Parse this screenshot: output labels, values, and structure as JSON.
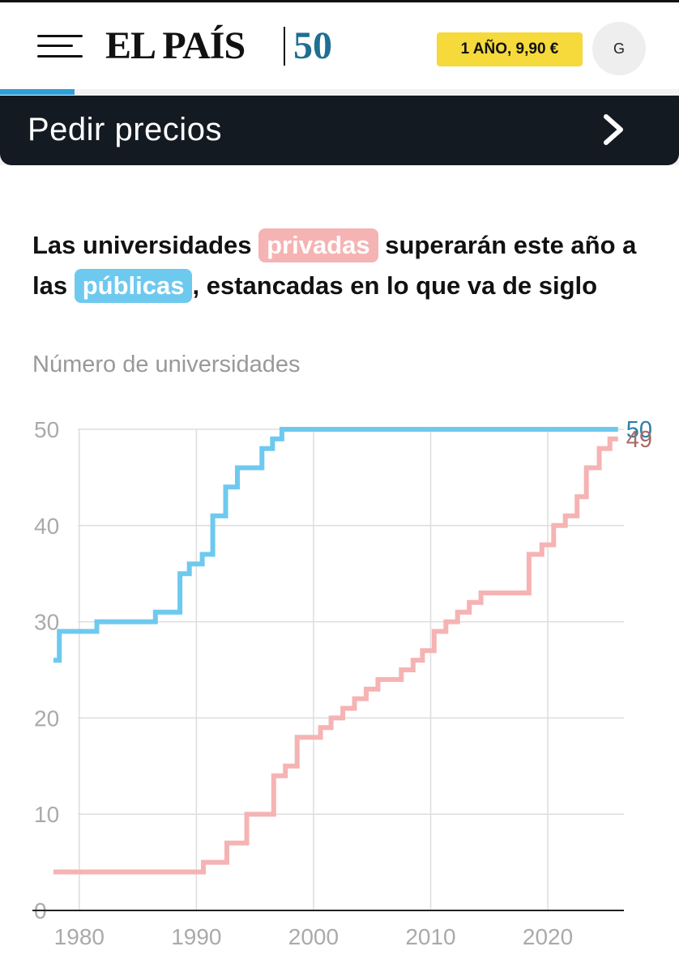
{
  "header": {
    "logo_text": "EL PAÍS",
    "logo_badge": "50",
    "subscribe_label": "1 AÑO, 9,90 €",
    "avatar_letter": "G"
  },
  "banner": {
    "label": "Pedir precios"
  },
  "article": {
    "title_part1": "Las universidades ",
    "title_highlight1": "privadas",
    "title_part2": " superarán este año a las ",
    "title_highlight2": "públicas",
    "title_part3": ", estancadas en lo que va de siglo",
    "subtitle": "Número de universidades"
  },
  "colors": {
    "public": "#6ec9ef",
    "private": "#f6b3b3",
    "public_label": "#2d7fa6",
    "private_label": "#a86a6a",
    "accent": "#f6d93b",
    "banner": "#141a22"
  },
  "chart_data": {
    "type": "line",
    "title": "",
    "xlabel": "",
    "ylabel": "",
    "xlim": [
      1976,
      2026.5
    ],
    "ylim": [
      0,
      50
    ],
    "x_ticks": [
      1980,
      1990,
      2000,
      2010,
      2020
    ],
    "y_ticks": [
      0,
      10,
      20,
      30,
      40,
      50
    ],
    "grid": true,
    "series": [
      {
        "name": "públicas",
        "color": "#6ec9ef",
        "end_label": "50",
        "points": [
          [
            1977.8,
            26
          ],
          [
            1978.3,
            26
          ],
          [
            1978.3,
            29
          ],
          [
            1981.5,
            29
          ],
          [
            1981.5,
            30
          ],
          [
            1986.5,
            30
          ],
          [
            1986.5,
            31
          ],
          [
            1988.6,
            31
          ],
          [
            1988.6,
            35
          ],
          [
            1989.4,
            35
          ],
          [
            1989.4,
            36
          ],
          [
            1990.5,
            36
          ],
          [
            1990.5,
            37
          ],
          [
            1991.4,
            37
          ],
          [
            1991.4,
            41
          ],
          [
            1992.5,
            41
          ],
          [
            1992.5,
            44
          ],
          [
            1993.5,
            44
          ],
          [
            1993.5,
            46
          ],
          [
            1995.6,
            46
          ],
          [
            1995.6,
            48
          ],
          [
            1996.5,
            48
          ],
          [
            1996.5,
            49
          ],
          [
            1997.3,
            49
          ],
          [
            1997.3,
            50
          ],
          [
            2026,
            50
          ]
        ]
      },
      {
        "name": "privadas",
        "color": "#f6b3b3",
        "end_label": "49",
        "points": [
          [
            1977.8,
            4
          ],
          [
            1990.6,
            4
          ],
          [
            1990.6,
            5
          ],
          [
            1992.6,
            5
          ],
          [
            1992.6,
            7
          ],
          [
            1994.3,
            7
          ],
          [
            1994.3,
            10
          ],
          [
            1996.6,
            10
          ],
          [
            1996.6,
            14
          ],
          [
            1997.6,
            14
          ],
          [
            1997.6,
            15
          ],
          [
            1998.6,
            15
          ],
          [
            1998.6,
            18
          ],
          [
            2000.6,
            18
          ],
          [
            2000.6,
            19
          ],
          [
            2001.5,
            19
          ],
          [
            2001.5,
            20
          ],
          [
            2002.5,
            20
          ],
          [
            2002.5,
            21
          ],
          [
            2003.5,
            21
          ],
          [
            2003.5,
            22
          ],
          [
            2004.5,
            22
          ],
          [
            2004.5,
            23
          ],
          [
            2005.5,
            23
          ],
          [
            2005.5,
            24
          ],
          [
            2007.5,
            24
          ],
          [
            2007.5,
            25
          ],
          [
            2008.5,
            25
          ],
          [
            2008.5,
            26
          ],
          [
            2009.3,
            26
          ],
          [
            2009.3,
            27
          ],
          [
            2010.3,
            27
          ],
          [
            2010.3,
            29
          ],
          [
            2011.3,
            29
          ],
          [
            2011.3,
            30
          ],
          [
            2012.3,
            30
          ],
          [
            2012.3,
            31
          ],
          [
            2013.3,
            31
          ],
          [
            2013.3,
            32
          ],
          [
            2014.3,
            32
          ],
          [
            2014.3,
            33
          ],
          [
            2018.4,
            33
          ],
          [
            2018.4,
            37
          ],
          [
            2019.5,
            37
          ],
          [
            2019.5,
            38
          ],
          [
            2020.5,
            38
          ],
          [
            2020.5,
            40
          ],
          [
            2021.5,
            40
          ],
          [
            2021.5,
            41
          ],
          [
            2022.5,
            41
          ],
          [
            2022.5,
            43
          ],
          [
            2023.3,
            43
          ],
          [
            2023.3,
            46
          ],
          [
            2024.4,
            46
          ],
          [
            2024.4,
            48
          ],
          [
            2025.3,
            48
          ],
          [
            2025.3,
            49
          ],
          [
            2026,
            49
          ]
        ]
      }
    ]
  }
}
